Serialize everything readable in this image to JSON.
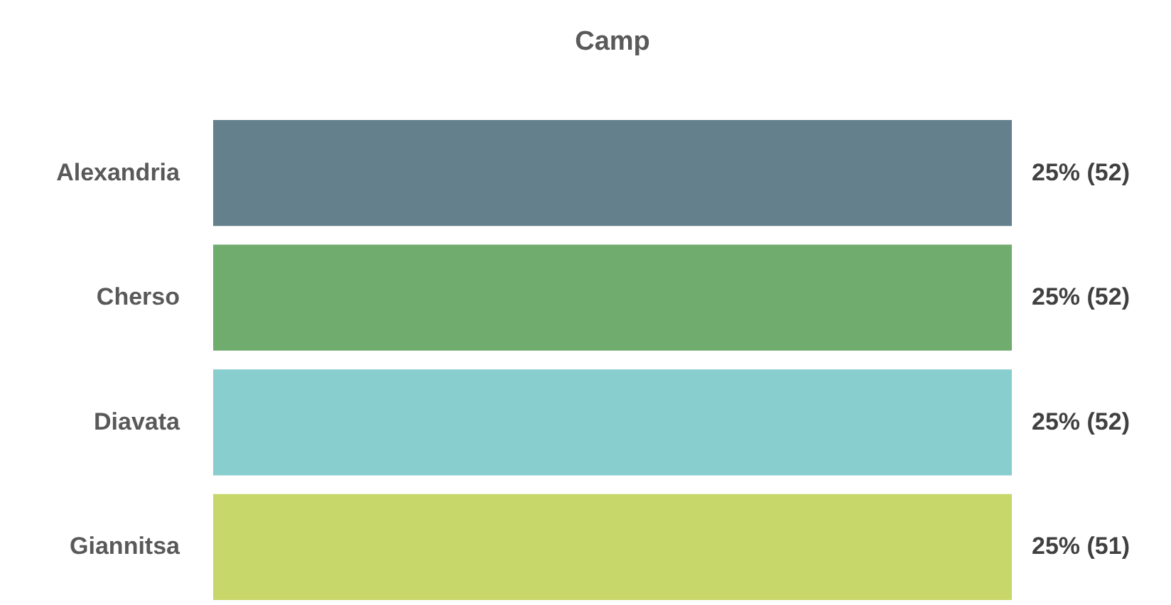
{
  "chart_data": {
    "type": "bar",
    "orientation": "horizontal",
    "title": "Camp",
    "categories": [
      "Alexandria",
      "Cherso",
      "Diavata",
      "Giannitsa"
    ],
    "values": [
      25,
      25,
      25,
      25
    ],
    "colors": [
      "#64808c",
      "#70ac6e",
      "#88cecf",
      "#c8d76a"
    ],
    "value_labels": [
      "25% (52)",
      "25% (52)",
      "25% (52)",
      "25% (51)"
    ]
  }
}
